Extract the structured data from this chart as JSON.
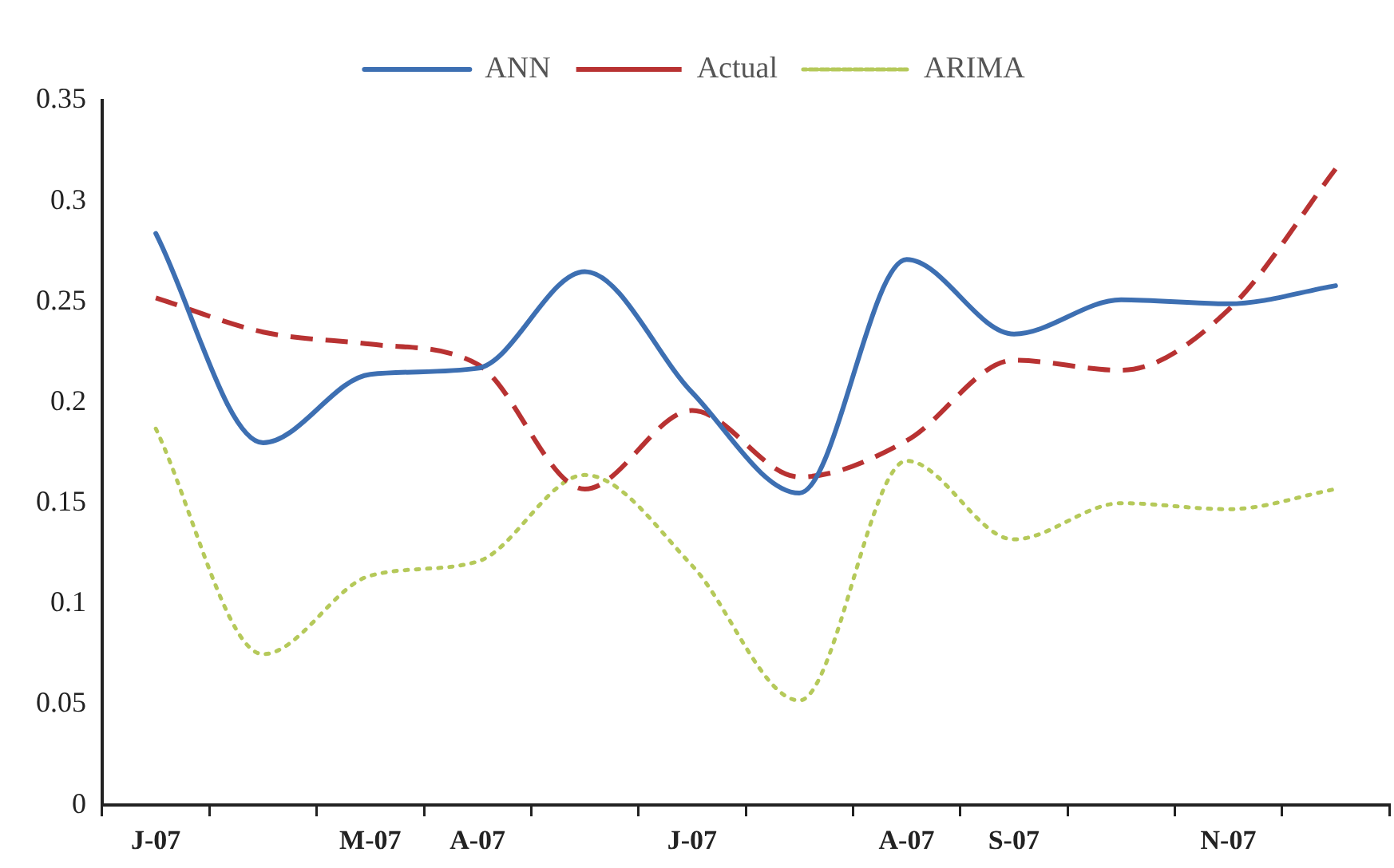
{
  "chart_data": {
    "type": "line",
    "categories": [
      "J-07",
      null,
      "M-07",
      "A-07",
      null,
      "J-07",
      null,
      "A-07",
      "S-07",
      null,
      "N-07",
      null
    ],
    "series": [
      {
        "name": "ANN",
        "color": "#3d6fb2",
        "line_style": "solid",
        "values": [
          0.284,
          0.18,
          0.214,
          0.217,
          0.265,
          0.205,
          0.155,
          0.271,
          0.234,
          0.251,
          0.249,
          0.258
        ]
      },
      {
        "name": "Actual",
        "color": "#b83232",
        "line_style": "dashed",
        "values": [
          0.252,
          0.235,
          0.229,
          0.219,
          0.157,
          0.196,
          0.163,
          0.181,
          0.221,
          0.216,
          0.246,
          0.316
        ]
      },
      {
        "name": "ARIMA",
        "color": "#b5c95a",
        "line_style": "dotted",
        "values": [
          0.187,
          0.075,
          0.114,
          0.121,
          0.164,
          0.119,
          0.052,
          0.171,
          0.132,
          0.15,
          0.147,
          0.157
        ]
      }
    ],
    "ylim": [
      0,
      0.35
    ],
    "yticks": [
      0,
      0.05,
      0.1,
      0.15,
      0.2,
      0.25,
      0.3,
      0.35
    ],
    "grid": false,
    "legend": "top",
    "marker": "none"
  }
}
